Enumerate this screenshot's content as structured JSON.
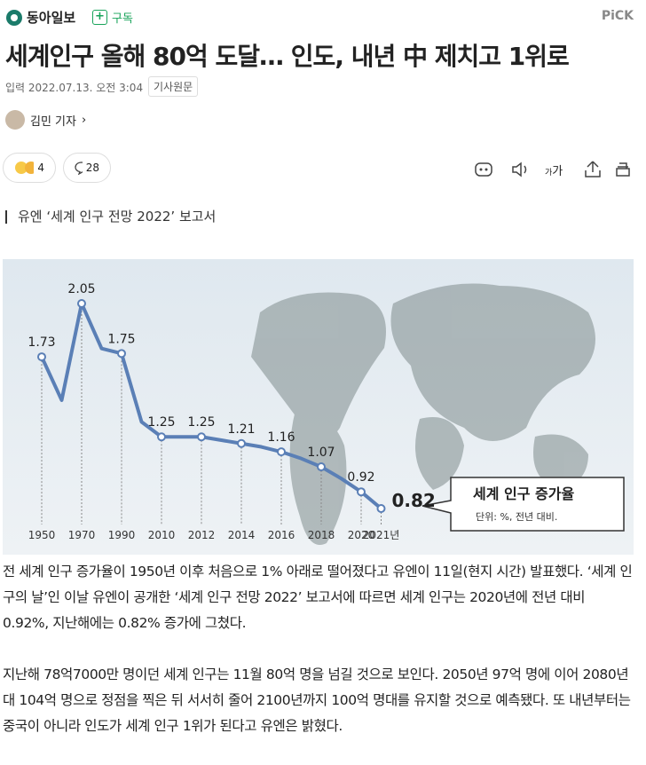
{
  "header": {
    "logo": "동아일보",
    "subscribe": "구독",
    "pick": "PiCK"
  },
  "title": "세계인구 올해 80억 도달… 인도, 내년 中 제치고 1위로",
  "meta": {
    "date": "입력 2022.07.13. 오전 3:04",
    "original": "기사원문"
  },
  "reporter": "김민 기자",
  "reactions": {
    "emoji_count": 4,
    "comments": 28
  },
  "font_button": [
    "가",
    "가"
  ],
  "subtitle": "유엔 ‘세계 인구 전망 2022’ 보고서",
  "chart_data": {
    "type": "line",
    "title": "세계 인구 증가율",
    "subtitle": "단위: %, 전년 대비.",
    "categories": [
      "1950",
      null,
      "1970",
      null,
      "1990",
      null,
      "2010",
      null,
      "2012",
      null,
      "2014",
      null,
      "2016",
      null,
      "2018",
      null,
      "2020",
      "2021년"
    ],
    "values": [
      1.73,
      1.47,
      2.05,
      1.78,
      1.75,
      1.34,
      1.25,
      1.25,
      1.25,
      1.23,
      1.21,
      1.19,
      1.16,
      1.12,
      1.07,
      1.0,
      0.92,
      0.82
    ],
    "color": "#5a7fb6"
  },
  "body": [
    "전 세계 인구 증가율이 1950년 이후 처음으로 1% 아래로 떨어졌다고 유엔이 11일(현지 시간) 발표했다. ‘세계 인구의 날’인 이날 유엔이 공개한 ‘세계 인구 전망 2022’ 보고서에 따르면 세계 인구는 2020년에 전년 대비 0.92%, 지난해에는 0.82% 증가에 그쳤다.",
    "지난해 78억7000만 명이던 세계 인구는 11월 80억 명을 넘길 것으로 보인다. 2050년 97억 명에 이어 2080년대 104억 명으로 정점을 찍은 뒤 서서히 줄어 2100년까지 100억 명대를 유지할 것으로 예측됐다. 또 내년부터는 중국이 아니라 인도가 세계 인구 1위가 된다고 유엔은 밝혔다."
  ]
}
